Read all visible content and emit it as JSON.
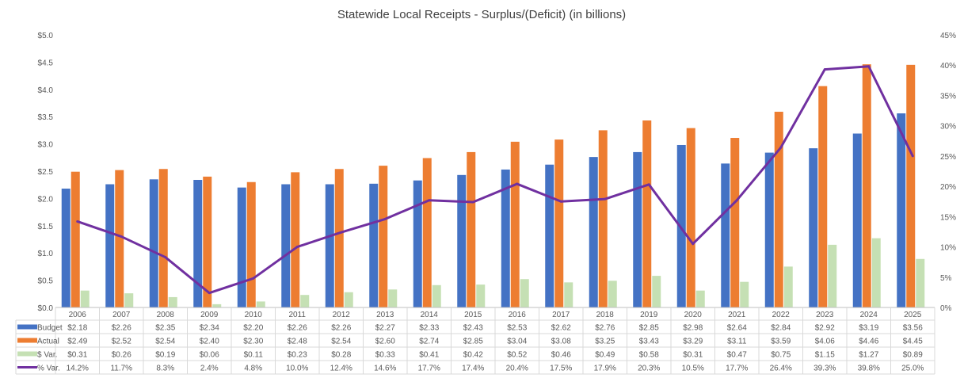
{
  "chart_data": {
    "type": "bar",
    "title": "Statewide Local Receipts - Surplus/(Deficit) (in billions)",
    "categories": [
      "2006",
      "2007",
      "2008",
      "2009",
      "2010",
      "2011",
      "2012",
      "2013",
      "2014",
      "2015",
      "2016",
      "2017",
      "2018",
      "2019",
      "2020",
      "2021",
      "2022",
      "2023",
      "2024",
      "2025"
    ],
    "series": [
      {
        "name": "Budget",
        "type": "bar",
        "axis": "left",
        "color": "#4472C4",
        "values": [
          2.18,
          2.26,
          2.35,
          2.34,
          2.2,
          2.26,
          2.26,
          2.27,
          2.33,
          2.43,
          2.53,
          2.62,
          2.76,
          2.85,
          2.98,
          2.64,
          2.84,
          2.92,
          3.19,
          3.56
        ],
        "labels": [
          "$2.18",
          "$2.26",
          "$2.35",
          "$2.34",
          "$2.20",
          "$2.26",
          "$2.26",
          "$2.27",
          "$2.33",
          "$2.43",
          "$2.53",
          "$2.62",
          "$2.76",
          "$2.85",
          "$2.98",
          "$2.64",
          "$2.84",
          "$2.92",
          "$3.19",
          "$3.56"
        ]
      },
      {
        "name": "Actual",
        "type": "bar",
        "axis": "left",
        "color": "#ED7D31",
        "values": [
          2.49,
          2.52,
          2.54,
          2.4,
          2.3,
          2.48,
          2.54,
          2.6,
          2.74,
          2.85,
          3.04,
          3.08,
          3.25,
          3.43,
          3.29,
          3.11,
          3.59,
          4.06,
          4.46,
          4.45
        ],
        "labels": [
          "$2.49",
          "$2.52",
          "$2.54",
          "$2.40",
          "$2.30",
          "$2.48",
          "$2.54",
          "$2.60",
          "$2.74",
          "$2.85",
          "$3.04",
          "$3.08",
          "$3.25",
          "$3.43",
          "$3.29",
          "$3.11",
          "$3.59",
          "$4.06",
          "$4.46",
          "$4.45"
        ]
      },
      {
        "name": "$ Var.",
        "type": "bar",
        "axis": "left",
        "color": "#C5E0B4",
        "values": [
          0.31,
          0.26,
          0.19,
          0.06,
          0.11,
          0.23,
          0.28,
          0.33,
          0.41,
          0.42,
          0.52,
          0.46,
          0.49,
          0.58,
          0.31,
          0.47,
          0.75,
          1.15,
          1.27,
          0.89
        ],
        "labels": [
          "$0.31",
          "$0.26",
          "$0.19",
          "$0.06",
          "$0.11",
          "$0.23",
          "$0.28",
          "$0.33",
          "$0.41",
          "$0.42",
          "$0.52",
          "$0.46",
          "$0.49",
          "$0.58",
          "$0.31",
          "$0.47",
          "$0.75",
          "$1.15",
          "$1.27",
          "$0.89"
        ]
      },
      {
        "name": "% Var.",
        "type": "line",
        "axis": "right",
        "color": "#7030A0",
        "values": [
          14.2,
          11.7,
          8.3,
          2.4,
          4.8,
          10.0,
          12.4,
          14.6,
          17.7,
          17.4,
          20.4,
          17.5,
          17.9,
          20.3,
          10.5,
          17.7,
          26.4,
          39.3,
          39.8,
          25.0
        ],
        "labels": [
          "14.2%",
          "11.7%",
          "8.3%",
          "2.4%",
          "4.8%",
          "10.0%",
          "12.4%",
          "14.6%",
          "17.7%",
          "17.4%",
          "20.4%",
          "17.5%",
          "17.9%",
          "20.3%",
          "10.5%",
          "17.7%",
          "26.4%",
          "39.3%",
          "39.8%",
          "25.0%"
        ]
      }
    ],
    "y_left": {
      "range": [
        0,
        5
      ],
      "ticks": [
        "$0.0",
        "$0.5",
        "$1.0",
        "$1.5",
        "$2.0",
        "$2.5",
        "$3.0",
        "$3.5",
        "$4.0",
        "$4.5",
        "$5.0"
      ]
    },
    "y_right": {
      "range": [
        0,
        45
      ],
      "ticks": [
        "0%",
        "5%",
        "10%",
        "15%",
        "20%",
        "25%",
        "30%",
        "35%",
        "40%",
        "45%"
      ]
    },
    "grid": false,
    "legend": "data-table"
  }
}
